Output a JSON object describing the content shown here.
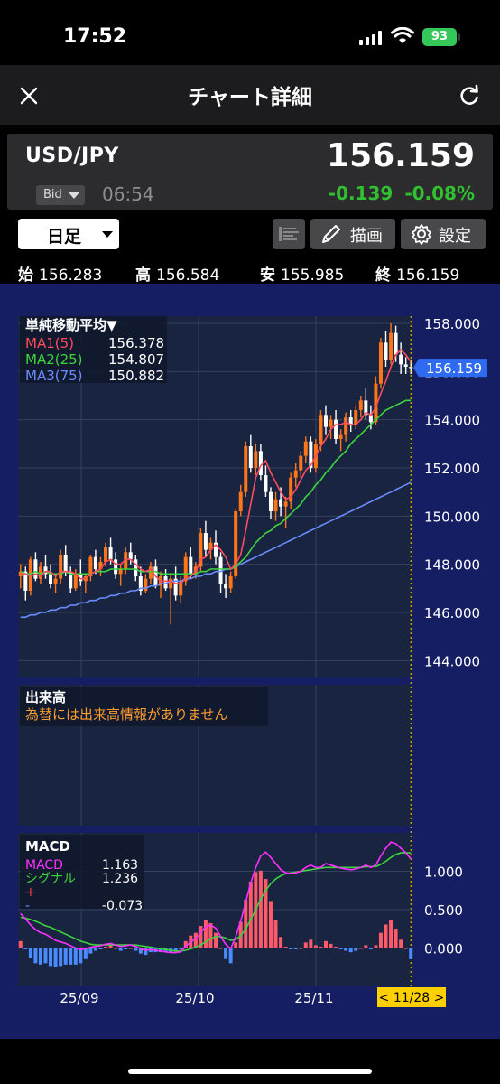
{
  "status_bar": {
    "time": "17:52",
    "battery": "93"
  },
  "nav": {
    "title": "チャート詳細"
  },
  "quote": {
    "symbol": "USD/JPY",
    "price": "156.159",
    "price_type": "Bid",
    "time": "06:54",
    "change": "-0.139",
    "change_pct": "-0.08%",
    "change_color": "#30c030"
  },
  "controls": {
    "period": "日足",
    "draw_label": "描画",
    "settings_label": "設定"
  },
  "ohlc": {
    "open_key": "始",
    "open": "156.283",
    "high_key": "高",
    "high": "156.584",
    "low_key": "安",
    "low": "155.985",
    "close_key": "終",
    "close": "156.159"
  },
  "colors": {
    "chart_bg": "#182440",
    "outer_bg": "#151d63",
    "up": "#ff7518",
    "down": "#ffffff",
    "ma1": "#ff4b5c",
    "ma2": "#3cd43c",
    "ma3": "#6b8cff",
    "macd": "#ff30ff",
    "signal": "#3cd43c",
    "hist_pos": "#ff5a6a",
    "hist_neg": "#4a8cff",
    "price_tag": "#2f6bf0",
    "date_tag": "#ffd000"
  },
  "chart_data": {
    "type": "candlestick",
    "price_panel": {
      "indicator_title": "単純移動平均▼",
      "legend": [
        {
          "name": "MA1(5)",
          "value": "156.378"
        },
        {
          "name": "MA2(25)",
          "value": "154.807"
        },
        {
          "name": "MA3(75)",
          "value": "150.882"
        }
      ],
      "ylim": [
        143.3,
        158.3
      ],
      "y_ticks": [
        "158.000",
        "156.000",
        "154.000",
        "152.000",
        "150.000",
        "148.000",
        "146.000",
        "144.000"
      ],
      "last_price": "156.159",
      "candles": [
        [
          147.5,
          148.0,
          147.0,
          147.7
        ],
        [
          147.7,
          147.9,
          146.5,
          146.9
        ],
        [
          146.9,
          148.3,
          146.7,
          148.2
        ],
        [
          148.2,
          148.5,
          147.3,
          147.4
        ],
        [
          147.4,
          148.1,
          147.2,
          147.9
        ],
        [
          147.9,
          148.4,
          147.4,
          147.6
        ],
        [
          147.6,
          148.0,
          147.0,
          147.2
        ],
        [
          147.2,
          147.5,
          146.8,
          147.4
        ],
        [
          147.4,
          148.6,
          147.2,
          148.4
        ],
        [
          148.4,
          148.8,
          147.5,
          147.7
        ],
        [
          147.7,
          147.9,
          146.8,
          147.0
        ],
        [
          147.0,
          147.8,
          146.9,
          147.6
        ],
        [
          147.6,
          148.2,
          147.1,
          147.3
        ],
        [
          147.3,
          147.6,
          146.8,
          147.5
        ],
        [
          147.5,
          148.4,
          147.3,
          148.3
        ],
        [
          148.3,
          148.6,
          147.6,
          147.8
        ],
        [
          147.8,
          148.3,
          147.5,
          148.1
        ],
        [
          148.1,
          148.9,
          147.9,
          148.7
        ],
        [
          148.7,
          149.1,
          148.0,
          148.2
        ],
        [
          148.2,
          148.5,
          147.4,
          147.6
        ],
        [
          147.6,
          148.0,
          147.1,
          147.8
        ],
        [
          147.8,
          148.7,
          147.6,
          148.5
        ],
        [
          148.5,
          148.9,
          148.0,
          148.2
        ],
        [
          148.2,
          148.4,
          147.3,
          147.5
        ],
        [
          147.5,
          147.9,
          146.7,
          146.9
        ],
        [
          146.9,
          147.6,
          146.8,
          147.4
        ],
        [
          147.4,
          148.1,
          147.2,
          147.9
        ],
        [
          147.9,
          148.2,
          147.0,
          147.1
        ],
        [
          147.1,
          147.7,
          146.6,
          147.5
        ],
        [
          147.5,
          147.8,
          146.9,
          147.0
        ],
        [
          147.0,
          147.6,
          145.5,
          147.4
        ],
        [
          147.4,
          147.9,
          146.5,
          146.7
        ],
        [
          146.7,
          147.5,
          146.4,
          147.3
        ],
        [
          147.3,
          148.5,
          147.1,
          148.3
        ],
        [
          148.3,
          148.7,
          147.4,
          147.6
        ],
        [
          147.6,
          148.1,
          147.4,
          147.9
        ],
        [
          147.9,
          149.5,
          147.7,
          149.3
        ],
        [
          149.3,
          149.8,
          148.3,
          148.6
        ],
        [
          148.6,
          149.1,
          148.2,
          148.9
        ],
        [
          148.9,
          149.4,
          148.0,
          148.3
        ],
        [
          148.3,
          148.5,
          146.8,
          147.2
        ],
        [
          147.2,
          147.6,
          146.6,
          147.0
        ],
        [
          147.0,
          147.7,
          146.8,
          147.5
        ],
        [
          147.5,
          150.3,
          147.4,
          150.2
        ],
        [
          150.2,
          151.3,
          150.0,
          151.0
        ],
        [
          151.0,
          153.1,
          150.8,
          152.9
        ],
        [
          152.9,
          153.4,
          151.8,
          152.0
        ],
        [
          152.0,
          153.0,
          151.7,
          152.7
        ],
        [
          152.7,
          153.0,
          151.5,
          151.7
        ],
        [
          151.7,
          152.1,
          150.8,
          151.0
        ],
        [
          151.0,
          151.2,
          149.9,
          150.2
        ],
        [
          150.2,
          151.0,
          149.8,
          150.7
        ],
        [
          150.7,
          151.2,
          150.0,
          150.4
        ],
        [
          150.4,
          150.8,
          149.5,
          150.6
        ],
        [
          150.6,
          151.8,
          150.3,
          151.6
        ],
        [
          151.6,
          152.2,
          151.2,
          151.9
        ],
        [
          151.9,
          152.7,
          151.6,
          152.5
        ],
        [
          152.5,
          153.3,
          152.2,
          153.1
        ],
        [
          153.1,
          153.3,
          151.8,
          152.0
        ],
        [
          152.0,
          153.2,
          151.8,
          153.0
        ],
        [
          153.0,
          154.4,
          152.7,
          154.2
        ],
        [
          154.2,
          154.6,
          153.4,
          153.7
        ],
        [
          153.7,
          154.2,
          153.2,
          154.0
        ],
        [
          154.0,
          154.4,
          153.0,
          153.2
        ],
        [
          153.2,
          153.6,
          152.7,
          153.4
        ],
        [
          153.4,
          154.3,
          153.1,
          154.1
        ],
        [
          154.1,
          154.4,
          153.5,
          153.8
        ],
        [
          153.8,
          154.6,
          153.6,
          154.4
        ],
        [
          154.4,
          155.0,
          154.1,
          154.8
        ],
        [
          154.8,
          155.3,
          154.0,
          154.2
        ],
        [
          154.2,
          154.6,
          153.6,
          153.9
        ],
        [
          153.9,
          155.8,
          153.8,
          155.5
        ],
        [
          155.5,
          157.4,
          155.3,
          157.2
        ],
        [
          157.2,
          157.7,
          156.2,
          156.5
        ],
        [
          156.5,
          158.0,
          156.3,
          157.6
        ],
        [
          157.6,
          157.9,
          156.4,
          156.7
        ],
        [
          156.7,
          157.2,
          155.9,
          156.3
        ],
        [
          156.3,
          156.6,
          155.9,
          156.2
        ],
        [
          156.2,
          156.5,
          155.9,
          156.16
        ]
      ],
      "ma1": [
        147.6,
        147.6,
        147.5,
        147.6,
        147.5,
        147.7,
        147.7,
        147.5,
        147.7,
        147.7,
        147.7,
        147.6,
        147.4,
        147.4,
        147.6,
        147.7,
        147.8,
        148.1,
        148.2,
        148.0,
        148.0,
        148.2,
        148.2,
        148.0,
        147.8,
        147.7,
        147.8,
        147.5,
        147.3,
        147.3,
        147.3,
        147.2,
        147.2,
        147.4,
        147.5,
        147.7,
        148.2,
        148.3,
        148.6,
        148.8,
        148.6,
        148.3,
        147.8,
        148.0,
        148.4,
        149.4,
        150.5,
        151.6,
        152.1,
        152.3,
        151.8,
        151.4,
        151.0,
        150.7,
        150.8,
        151.1,
        151.5,
        151.9,
        152.1,
        152.5,
        152.9,
        153.2,
        153.6,
        153.8,
        153.8,
        153.9,
        153.8,
        153.8,
        154.0,
        154.3,
        154.2,
        154.5,
        155.1,
        155.6,
        156.2,
        156.7,
        156.9,
        156.7,
        156.4
      ],
      "ma2": [
        147.7,
        147.6,
        147.6,
        147.7,
        147.6,
        147.7,
        147.6,
        147.6,
        147.6,
        147.7,
        147.6,
        147.6,
        147.6,
        147.6,
        147.6,
        147.7,
        147.7,
        147.7,
        147.8,
        147.8,
        147.8,
        147.8,
        147.8,
        147.8,
        147.7,
        147.7,
        147.7,
        147.7,
        147.6,
        147.6,
        147.6,
        147.6,
        147.6,
        147.6,
        147.6,
        147.6,
        147.7,
        147.7,
        147.8,
        147.8,
        147.8,
        147.8,
        147.8,
        147.9,
        148.1,
        148.3,
        148.6,
        148.9,
        149.1,
        149.3,
        149.4,
        149.6,
        149.7,
        149.9,
        150.1,
        150.3,
        150.5,
        150.8,
        151.0,
        151.3,
        151.5,
        151.8,
        152.0,
        152.3,
        152.5,
        152.7,
        153.0,
        153.2,
        153.4,
        153.6,
        153.8,
        154.0,
        154.2,
        154.4,
        154.5,
        154.6,
        154.7,
        154.8,
        154.8
      ],
      "ma3": [
        145.8,
        145.8,
        145.9,
        145.9,
        146.0,
        146.0,
        146.1,
        146.1,
        146.2,
        146.2,
        146.3,
        146.3,
        146.4,
        146.4,
        146.5,
        146.5,
        146.6,
        146.6,
        146.7,
        146.7,
        146.8,
        146.8,
        146.9,
        146.9,
        147.0,
        147.0,
        147.1,
        147.1,
        147.2,
        147.2,
        147.3,
        147.3,
        147.3,
        147.4,
        147.4,
        147.5,
        147.5,
        147.6,
        147.6,
        147.7,
        147.7,
        147.8,
        147.8,
        147.9,
        148.0,
        148.1,
        148.2,
        148.3,
        148.4,
        148.5,
        148.6,
        148.7,
        148.8,
        148.9,
        149.0,
        149.1,
        149.2,
        149.3,
        149.4,
        149.5,
        149.6,
        149.7,
        149.8,
        149.9,
        150.0,
        150.1,
        150.2,
        150.3,
        150.4,
        150.5,
        150.6,
        150.7,
        150.8,
        150.9,
        151.0,
        151.1,
        151.2,
        151.3,
        151.4
      ]
    },
    "volume_panel": {
      "title": "出来高",
      "message": "為替には出来高情報がありません"
    },
    "macd_panel": {
      "title": "MACD",
      "legend": [
        {
          "name": "MACD",
          "value": "1.163"
        },
        {
          "name": "シグナル",
          "value": "1.236"
        },
        {
          "name": "+",
          "value": ""
        },
        {
          "name": "-",
          "value": "-0.073"
        }
      ],
      "ylim": [
        -0.5,
        1.5
      ],
      "y_ticks": [
        "1.000",
        "0.500",
        "0.000"
      ],
      "macd": [
        0.45,
        0.38,
        0.3,
        0.24,
        0.2,
        0.18,
        0.14,
        0.1,
        0.08,
        0.06,
        0.03,
        0.0,
        -0.02,
        -0.01,
        0.01,
        0.02,
        0.03,
        0.05,
        0.06,
        0.04,
        0.02,
        0.03,
        0.04,
        0.02,
        -0.01,
        -0.03,
        -0.02,
        -0.03,
        -0.04,
        -0.05,
        -0.06,
        -0.06,
        -0.05,
        0.02,
        0.08,
        0.12,
        0.2,
        0.28,
        0.3,
        0.26,
        0.15,
        0.05,
        -0.01,
        0.15,
        0.35,
        0.6,
        0.85,
        1.05,
        1.2,
        1.25,
        1.18,
        1.1,
        1.02,
        0.98,
        0.97,
        0.98,
        1.0,
        1.05,
        1.08,
        1.05,
        1.05,
        1.1,
        1.08,
        1.06,
        1.04,
        1.03,
        1.02,
        1.03,
        1.05,
        1.08,
        1.05,
        1.08,
        1.2,
        1.3,
        1.38,
        1.36,
        1.3,
        1.24,
        1.16
      ],
      "signal": [
        0.4,
        0.39,
        0.37,
        0.35,
        0.32,
        0.29,
        0.27,
        0.24,
        0.21,
        0.18,
        0.15,
        0.12,
        0.09,
        0.07,
        0.05,
        0.04,
        0.04,
        0.04,
        0.04,
        0.04,
        0.04,
        0.04,
        0.04,
        0.04,
        0.03,
        0.02,
        0.01,
        0.0,
        -0.01,
        -0.02,
        -0.03,
        -0.04,
        -0.04,
        -0.03,
        -0.01,
        0.01,
        0.04,
        0.08,
        0.12,
        0.15,
        0.15,
        0.13,
        0.1,
        0.11,
        0.16,
        0.25,
        0.37,
        0.5,
        0.64,
        0.75,
        0.84,
        0.9,
        0.94,
        0.97,
        0.98,
        0.99,
        1.0,
        1.01,
        1.02,
        1.03,
        1.04,
        1.05,
        1.05,
        1.05,
        1.05,
        1.05,
        1.05,
        1.05,
        1.05,
        1.06,
        1.06,
        1.06,
        1.09,
        1.13,
        1.18,
        1.22,
        1.24,
        1.24,
        1.24
      ]
    },
    "x_ticks": [
      "25/09",
      "25/10",
      "25/11"
    ],
    "current_date": "< 11/28 >"
  }
}
